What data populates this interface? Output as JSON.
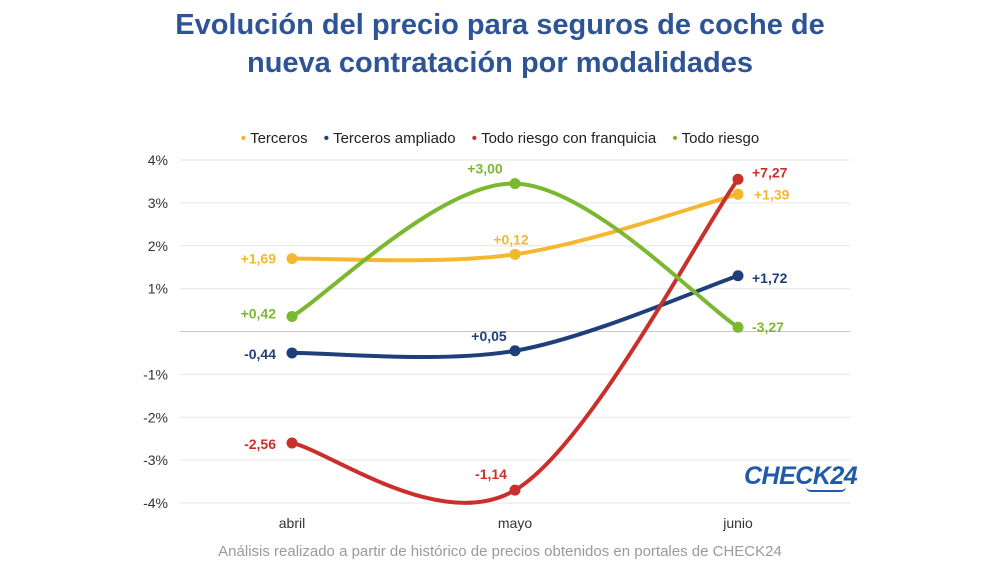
{
  "chart_data": {
    "type": "line",
    "title": [
      "Evolución del precio para seguros de coche de",
      "nueva contratación por modalidades"
    ],
    "categories": [
      "abril",
      "mayo",
      "junio"
    ],
    "ylim": [
      -4,
      4
    ],
    "yticks": [
      {
        "value": 4,
        "label": "4%"
      },
      {
        "value": 3,
        "label": "3%"
      },
      {
        "value": 2,
        "label": "2%"
      },
      {
        "value": 1,
        "label": "1%"
      },
      {
        "value": -1,
        "label": "-1%"
      },
      {
        "value": -2,
        "label": "-2%"
      },
      {
        "value": -3,
        "label": "-3%"
      },
      {
        "value": -4,
        "label": "-4%"
      }
    ],
    "series": [
      {
        "name": "Terceros",
        "color": "#f5b730",
        "positions": [
          1.7,
          1.8,
          3.2
        ],
        "labels": [
          "+1,69",
          "+0,12",
          "+1,39"
        ]
      },
      {
        "name": "Terceros ampliado",
        "color": "#1f3f7a",
        "positions": [
          -0.5,
          -0.45,
          1.3
        ],
        "labels": [
          "-0,44",
          "+0,05",
          "+1,72"
        ]
      },
      {
        "name": "Todo riesgo con franquicia",
        "color": "#c9302c",
        "positions": [
          -2.6,
          -3.7,
          3.55
        ],
        "labels": [
          "-2,56",
          "-1,14",
          "+7,27"
        ]
      },
      {
        "name": "Todo riesgo",
        "color": "#7cb82f",
        "positions": [
          0.35,
          3.45,
          0.1
        ],
        "labels": [
          "+0,42",
          "+3,00",
          "-3,27"
        ]
      }
    ]
  },
  "brand": {
    "logo": "CHECK24"
  },
  "footer": "Análisis realizado a partir de histórico de precios obtenidos en portales de CHECK24"
}
